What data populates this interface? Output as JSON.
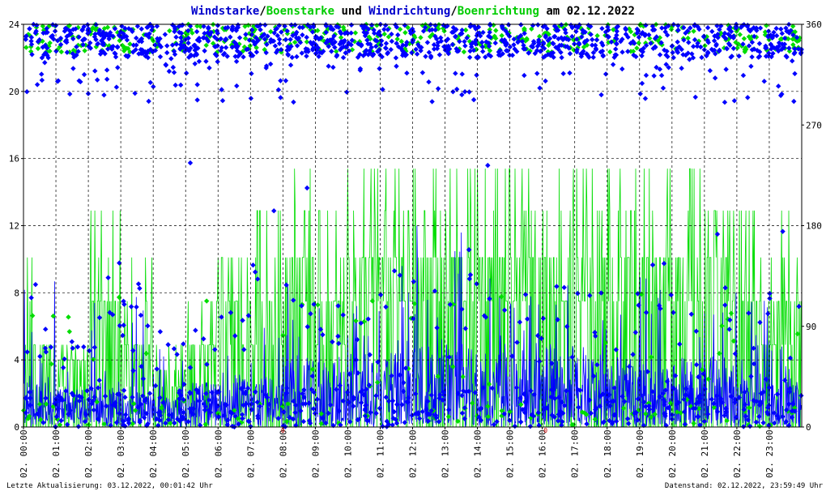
{
  "title": {
    "parts": [
      {
        "text": "Windstarke",
        "color": "#0000cc"
      },
      {
        "text": "/",
        "color": "#000000"
      },
      {
        "text": "Boenstarke",
        "color": "#00cc00"
      },
      {
        "text": " und ",
        "color": "#000000"
      },
      {
        "text": "Windrichtung",
        "color": "#0000cc"
      },
      {
        "text": "/",
        "color": "#000000"
      },
      {
        "text": "Boenrichtung",
        "color": "#00cc00"
      },
      {
        "text": " am 02.12.2022",
        "color": "#000000"
      }
    ]
  },
  "footer": {
    "left": "Letzte Aktualisierung: 03.12.2022, 00:01:42 Uhr",
    "right": "Datenstand: 02.12.2022, 23:59:49 Uhr"
  },
  "chart_data": {
    "type": "line",
    "x_ticks": [
      "02. 00:00",
      "02. 01:00",
      "02. 02:00",
      "02. 03:00",
      "02. 04:00",
      "02. 05:00",
      "02. 06:00",
      "02. 07:00",
      "02. 08:00",
      "02. 09:00",
      "02. 10:00",
      "02. 11:00",
      "02. 12:00",
      "02. 13:00",
      "02. 14:00",
      "02. 15:00",
      "02. 16:00",
      "02. 17:00",
      "02. 18:00",
      "02. 19:00",
      "02. 20:00",
      "02. 21:00",
      "02. 22:00",
      "02. 23:00"
    ],
    "y_left": {
      "ticks": [
        "0",
        "4",
        "8",
        "12",
        "16",
        "20",
        "24"
      ],
      "range": [
        0,
        24
      ]
    },
    "y_right": {
      "ticks": [
        "0",
        "90",
        "180",
        "270",
        "360"
      ],
      "range": [
        0,
        360
      ]
    },
    "grid": true,
    "series": [
      {
        "name": "Windstarke",
        "axis": "left",
        "kind": "line",
        "color": "#0000ff",
        "hourly_typical": [
          1.8,
          1.5,
          1.8,
          1.4,
          1.2,
          1.8,
          2.2,
          2.0,
          2.8,
          2.8,
          3.0,
          3.0,
          3.2,
          3.5,
          3.0,
          2.8,
          3.2,
          3.0,
          3.0,
          2.5,
          2.8,
          2.8,
          2.2,
          2.0
        ],
        "hourly_max": [
          8.9,
          5.2,
          10.1,
          8.8,
          6.2,
          6.5,
          7.5,
          9.8,
          9.4,
          8.0,
          9.2,
          10.1,
          13.8,
          12.5,
          9.0,
          8.0,
          9.2,
          8.0,
          8.0,
          9.8,
          9.2,
          8.5,
          8.0,
          8.0
        ]
      },
      {
        "name": "Boenstarke",
        "axis": "left",
        "kind": "line",
        "color": "#00dd00",
        "hourly_typical": [
          4.9,
          4.0,
          7.5,
          4.9,
          3.4,
          4.9,
          7.5,
          7.5,
          10.1,
          7.5,
          10.1,
          10.1,
          10.1,
          10.1,
          10.1,
          10.1,
          10.1,
          10.1,
          10.1,
          10.1,
          10.1,
          10.1,
          7.5,
          7.5
        ],
        "hourly_max": [
          12.9,
          10.1,
          17.9,
          15.4,
          10.1,
          7.5,
          10.1,
          17.9,
          15.4,
          15.4,
          15.4,
          17.9,
          17.9,
          20.6,
          15.4,
          15.4,
          15.4,
          17.9,
          17.9,
          15.4,
          15.4,
          12.9,
          17.9,
          12.9
        ]
      },
      {
        "name": "Windrichtung",
        "axis": "right",
        "kind": "scatter",
        "color": "#0000ff",
        "cluster_range": [
          330,
          360
        ],
        "spread_min": 290
      },
      {
        "name": "Boenrichtung",
        "axis": "right",
        "kind": "scatter",
        "color": "#00dd00",
        "cluster_range": [
          335,
          360
        ],
        "spread_min": 310
      }
    ],
    "markers": [
      {
        "hour": 8.0,
        "label": "0",
        "color": "#cc0000"
      },
      {
        "hour": 16.1,
        "label": "0",
        "color": "#cc0000"
      }
    ]
  }
}
